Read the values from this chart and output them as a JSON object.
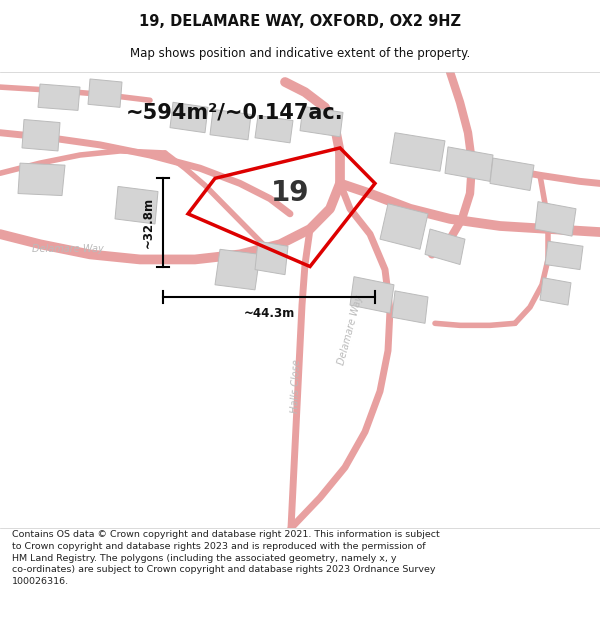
{
  "title": "19, DELAMARE WAY, OXFORD, OX2 9HZ",
  "subtitle": "Map shows position and indicative extent of the property.",
  "area_label": "~594m²/~0.147ac.",
  "number_label": "19",
  "dim_v": "~32.8m",
  "dim_h": "~44.3m",
  "footer": "Contains OS data © Crown copyright and database right 2021. This information is subject to Crown copyright and database rights 2023 and is reproduced with the permission of HM Land Registry. The polygons (including the associated geometry, namely x, y co-ordinates) are subject to Crown copyright and database rights 2023 Ordnance Survey 100026316.",
  "road_color": "#f0a0a0",
  "road_fill": "#fde8e8",
  "building_color": "#d4d4d4",
  "building_edge": "#bbbbbb",
  "plot_color": "#dd0000",
  "text_color": "#111111"
}
